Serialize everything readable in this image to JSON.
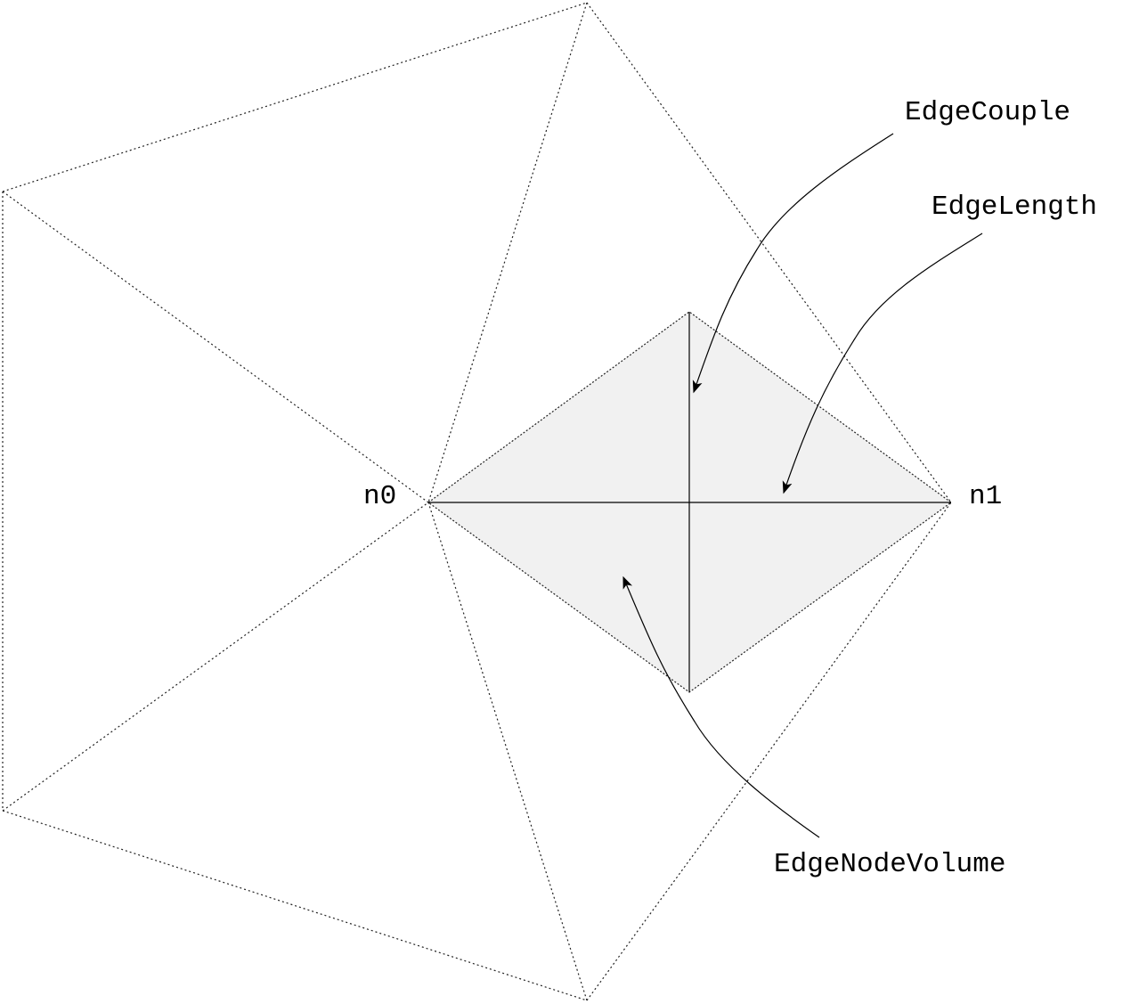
{
  "nodes": {
    "n0": "n0",
    "n1": "n1"
  },
  "annotations": {
    "edge_couple": "EdgeCouple",
    "edge_length": "EdgeLength",
    "edge_node_volume": "EdgeNodeVolume"
  }
}
